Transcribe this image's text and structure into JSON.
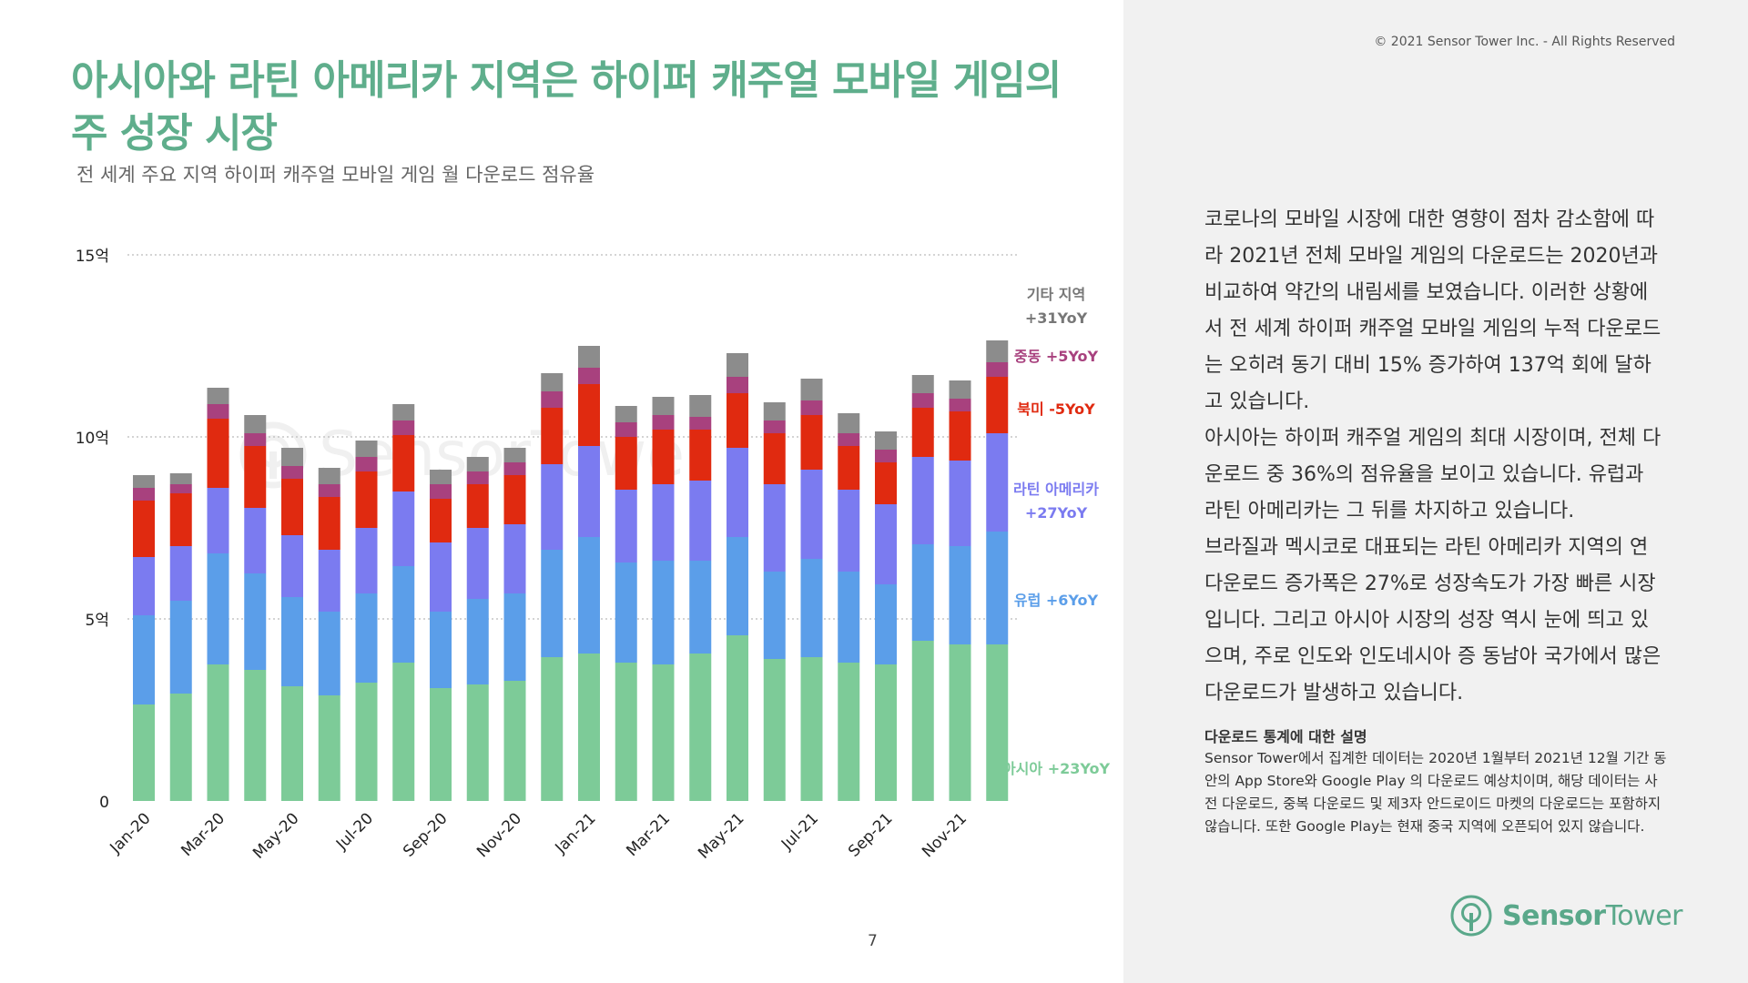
{
  "header": {
    "copyright": "© 2021 Sensor Tower Inc. - All Rights Reserved",
    "title_line1": "아시아와 라틴 아메리카 지역은 하이퍼 캐주얼 모바일 게임의",
    "title_line2": "주 성장 시장",
    "subtitle": "전 세계 주요 지역 하이퍼 캐주얼 모바일 게임 월 다운로드 점유율"
  },
  "page_number": "7",
  "watermark_text": "SensorTower",
  "logo": {
    "part1": "Sensor",
    "part2": "Tower"
  },
  "body_paragraphs": [
    "코로나의 모바일 시장에 대한 영향이 점차 감소함에 따라 2021년 전체 모바일 게임의 다운로드는 2020년과 비교하여 약간의 내림세를 보였습니다. 이러한 상황에서 전 세계 하이퍼 캐주얼 모바일 게임의 누적 다운로드는 오히려 동기 대비 15% 증가하여 137억 회에 달하고 있습니다.",
    "아시아는 하이퍼 캐주얼 게임의 최대 시장이며, 전체 다운로드 중 36%의 점유율을 보이고 있습니다. 유럽과 라틴 아메리카는 그 뒤를 차지하고 있습니다.",
    "브라질과 멕시코로 대표되는 라틴 아메리카 지역의 연 다운로드 증가폭은 27%로 성장속도가 가장 빠른 시장입니다. 그리고 아시아 시장의 성장 역시 눈에 띄고 있으며, 주로 인도와 인도네시아 증 동남아 국가에서 많은 다운로드가 발생하고 있습니다."
  ],
  "note": {
    "title": "다운로드 통계에 대한 설명",
    "text": "Sensor Tower에서 집계한 데이터는 2020년 1월부터 2021년 12월 기간 동안의 App Store와 Google Play 의 다운로드 예상치이며, 해당 데이터는 사전 다운로드, 중복 다운로드 및 제3자 안드로이드 마켓의 다운로드는 포함하지 않습니다. 또한 Google Play는 현재 중국 지역에 오픈되어 있지 않습니다."
  },
  "chart_data": {
    "type": "bar",
    "stacked": true,
    "title": "전 세계 주요 지역 하이퍼 캐주얼 모바일 게임 월 다운로드 점유율",
    "ylim": [
      0,
      15
    ],
    "y_unit": "억",
    "yticks": [
      {
        "value": 0,
        "label": "0"
      },
      {
        "value": 5,
        "label": "5억"
      },
      {
        "value": 10,
        "label": "10억"
      },
      {
        "value": 15,
        "label": "15억"
      }
    ],
    "grid": true,
    "categories": [
      "Jan-20",
      "Feb-20",
      "Mar-20",
      "Apr-20",
      "May-20",
      "Jun-20",
      "Jul-20",
      "Aug-20",
      "Sep-20",
      "Oct-20",
      "Nov-20",
      "Dec-20",
      "Jan-21",
      "Feb-21",
      "Mar-21",
      "Apr-21",
      "May-21",
      "Jun-21",
      "Jul-21",
      "Aug-21",
      "Sep-21",
      "Oct-21",
      "Nov-21",
      "Dec-21"
    ],
    "xtick_labels": [
      "Jan-20",
      "Mar-20",
      "May-20",
      "Jul-20",
      "Sep-20",
      "Nov-20",
      "Jan-21",
      "Mar-21",
      "May-21",
      "Jul-21",
      "Sep-21",
      "Nov-21"
    ],
    "series": [
      {
        "name": "아시아",
        "yoy": "+23YoY",
        "color": "#7dcb98",
        "values": [
          2.65,
          2.95,
          3.75,
          3.6,
          3.15,
          2.9,
          3.25,
          3.8,
          3.1,
          3.2,
          3.3,
          3.95,
          4.05,
          3.8,
          3.75,
          4.05,
          4.55,
          3.9,
          3.95,
          3.8,
          3.75,
          4.4,
          4.3,
          4.3
        ]
      },
      {
        "name": "유럽",
        "yoy": "+6YoY",
        "color": "#5b9ee9",
        "values": [
          2.45,
          2.55,
          3.05,
          2.65,
          2.45,
          2.3,
          2.45,
          2.65,
          2.1,
          2.35,
          2.4,
          2.95,
          3.2,
          2.75,
          2.85,
          2.55,
          2.7,
          2.4,
          2.7,
          2.5,
          2.2,
          2.65,
          2.7,
          3.1
        ]
      },
      {
        "name": "라틴 아메리카",
        "yoy": "+27YoY",
        "color": "#7b7bf0",
        "values": [
          1.6,
          1.5,
          1.8,
          1.8,
          1.7,
          1.7,
          1.8,
          2.05,
          1.9,
          1.95,
          1.9,
          2.35,
          2.5,
          2.0,
          2.1,
          2.2,
          2.45,
          2.4,
          2.45,
          2.25,
          2.2,
          2.4,
          2.35,
          2.7
        ]
      },
      {
        "name": "북미",
        "yoy": "-5YoY",
        "color": "#e02a10",
        "values": [
          1.55,
          1.45,
          1.9,
          1.7,
          1.55,
          1.45,
          1.55,
          1.55,
          1.2,
          1.2,
          1.35,
          1.55,
          1.7,
          1.45,
          1.5,
          1.4,
          1.5,
          1.4,
          1.5,
          1.2,
          1.15,
          1.35,
          1.35,
          1.55
        ]
      },
      {
        "name": "중동",
        "yoy": "+5YoY",
        "color": "#a8417e",
        "values": [
          0.35,
          0.25,
          0.4,
          0.35,
          0.35,
          0.35,
          0.4,
          0.4,
          0.4,
          0.35,
          0.35,
          0.45,
          0.45,
          0.4,
          0.4,
          0.35,
          0.45,
          0.35,
          0.4,
          0.35,
          0.35,
          0.4,
          0.35,
          0.4
        ]
      },
      {
        "name": "기타 지역",
        "yoy": "+31YoY",
        "color": "#8c8c8c",
        "values": [
          0.35,
          0.3,
          0.45,
          0.5,
          0.5,
          0.45,
          0.45,
          0.45,
          0.4,
          0.4,
          0.4,
          0.5,
          0.6,
          0.45,
          0.5,
          0.6,
          0.65,
          0.5,
          0.6,
          0.55,
          0.5,
          0.5,
          0.5,
          0.6
        ]
      }
    ],
    "legend_placement": "right"
  }
}
